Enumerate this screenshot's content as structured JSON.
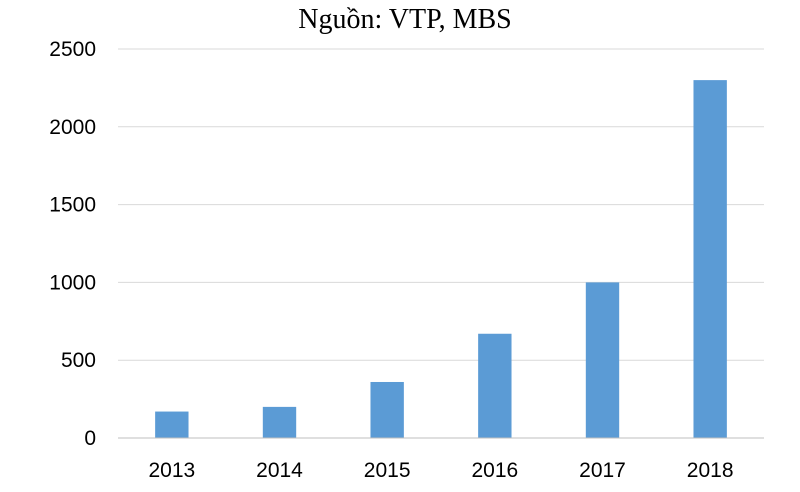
{
  "chart_data": {
    "type": "bar",
    "title": "Nguồn: VTP, MBS",
    "xlabel": "",
    "ylabel": "",
    "categories": [
      "2013",
      "2014",
      "2015",
      "2016",
      "2017",
      "2018"
    ],
    "values": [
      170,
      200,
      360,
      670,
      1000,
      2300
    ],
    "ylim": [
      0,
      2500
    ],
    "yticks": [
      0,
      500,
      1000,
      1500,
      2000,
      2500
    ],
    "grid": true,
    "legend": "none",
    "bar_color": "#5b9bd5"
  }
}
